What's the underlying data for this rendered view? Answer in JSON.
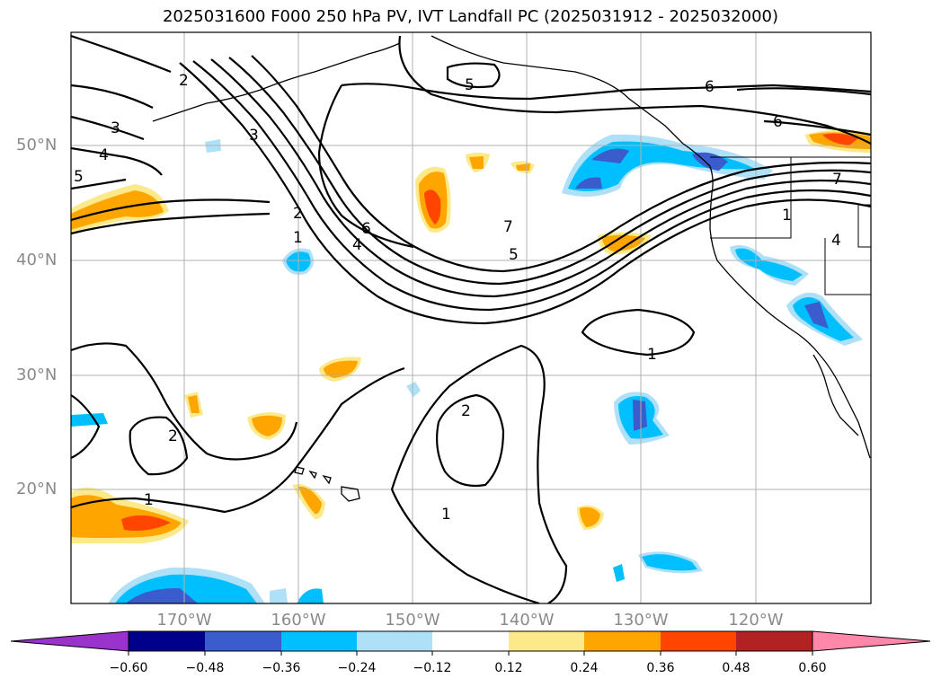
{
  "title": "2025031600 F000 250 hPa PV, IVT Landfall PC (2025031912 - 2025032000)",
  "lat_labels": [
    "50°N",
    "40°N",
    "30°N",
    "20°N"
  ],
  "lon_labels": [
    "170°W",
    "160°W",
    "150°W",
    "140°W",
    "130°W",
    "120°W"
  ],
  "colorbar": {
    "ticks": [
      "−0.60",
      "−0.48",
      "−0.36",
      "−0.24",
      "−0.12",
      "0.12",
      "0.24",
      "0.36",
      "0.48",
      "0.60"
    ],
    "colors": [
      "#9933cc",
      "#00008b",
      "#3a5ccc",
      "#00bfff",
      "#aee0f8",
      "#ffffff",
      "#fbe98a",
      "#ffa500",
      "#ff4500",
      "#b22222",
      "#ff88aa"
    ]
  },
  "contour_labels": [
    "1",
    "1",
    "1",
    "1",
    "1",
    "2",
    "2",
    "2",
    "2",
    "3",
    "3",
    "4",
    "4",
    "4",
    "5",
    "5",
    "5",
    "6",
    "6",
    "6",
    "7",
    "7"
  ],
  "colors": {
    "neg_light": "#aee0f8",
    "neg_mid": "#00bfff",
    "neg_dark": "#3a5ccc",
    "pos_light": "#fbe98a",
    "pos_mid": "#ffa500",
    "pos_dark": "#ff4500",
    "grid": "#b0b0b0"
  }
}
